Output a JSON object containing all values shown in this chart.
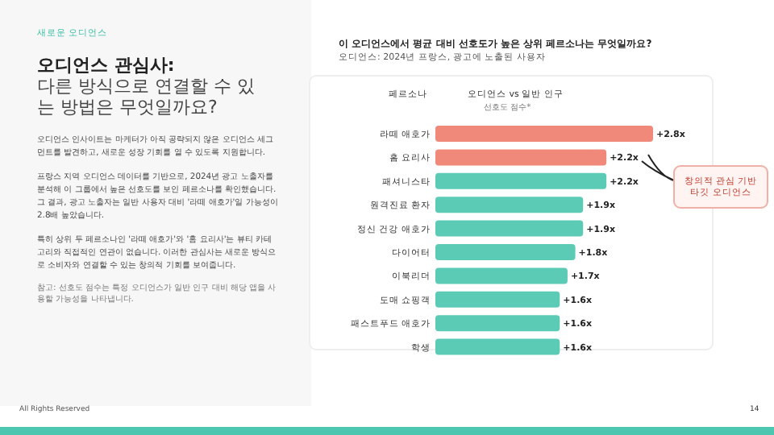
{
  "chart_data": {
    "type": "bar",
    "orientation": "horizontal",
    "title": "이 오디언스에서 평균 대비 선호도가 높은 상위 페르소나는 무엇일까요?",
    "subtitle": "오디언스: 2024년 프랑스, 광고에 노출된 사용자",
    "ylabel": "페르소나",
    "xlabel": "오디언스 vs 일반 인구",
    "categories": [
      "라떼 애호가",
      "홈 요리사",
      "패셔니스타",
      "원격진료 환자",
      "정신 건강 애호가",
      "다이어터",
      "이북리더",
      "도매 쇼핑객",
      "패스트푸드 애호가",
      "학생"
    ],
    "values": [
      2.8,
      2.2,
      2.2,
      1.9,
      1.9,
      1.8,
      1.7,
      1.6,
      1.6,
      1.6
    ],
    "colors": [
      "#f0897a",
      "#f0897a",
      "#5ccbb5",
      "#5ccbb5",
      "#5ccbb5",
      "#5ccbb5",
      "#5ccbb5",
      "#5ccbb5",
      "#5ccbb5",
      "#5ccbb5"
    ],
    "value_labels": [
      "+2.8x",
      "+2.2x",
      "+2.2x",
      "+1.9x",
      "+1.9x",
      "+1.8x",
      "+1.7x",
      "+1.6x",
      "+1.6x",
      "+1.6x"
    ],
    "annotations": [
      "새로운 오디언스",
      "오디언스 관심사:",
      "다른 방식으로 연결할 수 있는 방법은 무엇일까요?",
      "오디언스 인사이트는 마케터가 아직 공략되지 않은 오디언스 세그먼트를 발견하고, 새로운 성장 기회를 열 수 있도록 지원합니다.",
      "프랑스 지역 오디언스 데이터를 기반으로, 2024년 광고 노출자를 분석해 이 그룹에서 높은 선호도를 보인 페르소나를 확인했습니다. 그 결과, 광고 노출자는 일반 사용자 대비 '라떼 애호가'일 가능성이 2.8배 높았습니다.",
      "특히 상위 두 페르소나인 '라떼 애호가'와 '홈 요리사'는 뷰티 카테고리와 직접적인 연관이 없습니다. 이러한 관심사는 새로운 방식으로 소비자와 연결할 수 있는 창의적 기회를 보여줍니다.",
      "참고: 선호도 점수는 특정 오디언스가 일반 인구 대비 해당 앱을 사용할 가능성을 나타냅니다.",
      "All Rights Reserved",
      "14",
      "선호도 점수*",
      "창의적 관심 기반 타깃 오디언스"
    ]
  }
}
